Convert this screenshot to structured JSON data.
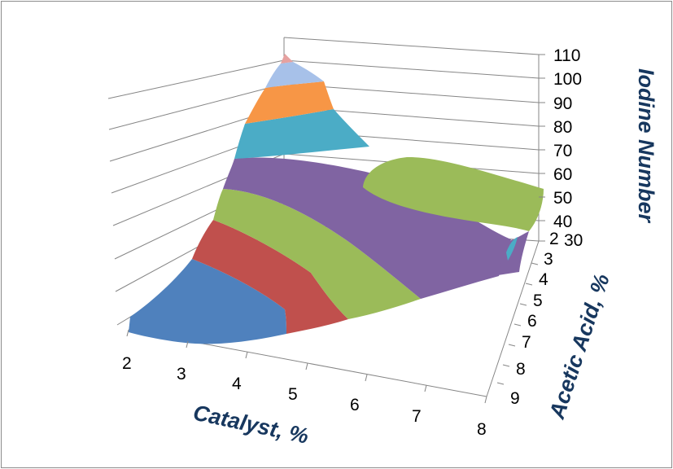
{
  "chart_data": {
    "type": "surface-3d",
    "title": "",
    "x_axis": {
      "label": "Catalyst, %",
      "ticks": [
        "2",
        "3",
        "4",
        "5",
        "6",
        "7",
        "8"
      ]
    },
    "y_axis": {
      "label": "Acetic Acid, %",
      "ticks": [
        "2",
        "3",
        "4",
        "5",
        "6",
        "7",
        "8",
        "9"
      ]
    },
    "z_axis": {
      "label": "Iodine Number",
      "ticks": [
        "30",
        "40",
        "50",
        "60",
        "70",
        "80",
        "90",
        "100",
        "110"
      ],
      "range": [
        30,
        110
      ]
    },
    "bands": [
      {
        "range": [
          30,
          40
        ],
        "color": "#4f81bd"
      },
      {
        "range": [
          40,
          50
        ],
        "color": "#c0504d"
      },
      {
        "range": [
          50,
          60
        ],
        "color": "#9bbb59"
      },
      {
        "range": [
          60,
          70
        ],
        "color": "#8064a2"
      },
      {
        "range": [
          70,
          80
        ],
        "color": "#4bacc6"
      },
      {
        "range": [
          80,
          90
        ],
        "color": "#f79646"
      },
      {
        "range": [
          90,
          100
        ],
        "color": "#a7c1e9"
      },
      {
        "range": [
          100,
          110
        ],
        "color": "#e6a1a0"
      }
    ],
    "grid": true,
    "legend": "none"
  }
}
